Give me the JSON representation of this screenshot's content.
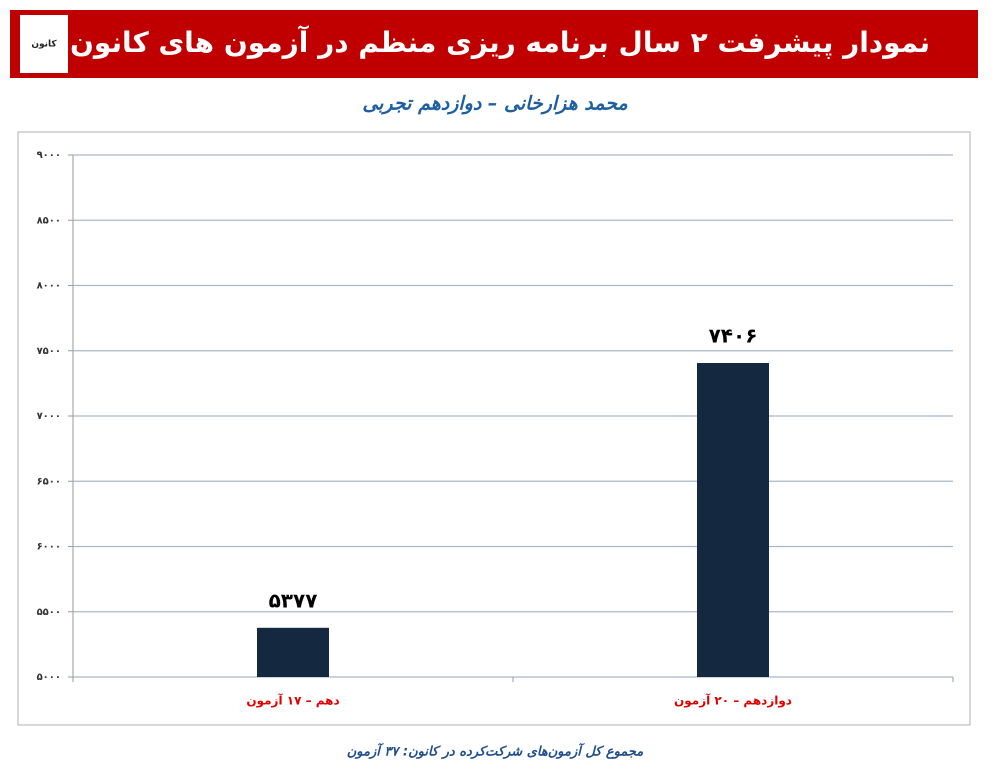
{
  "header": {
    "title": "نمودار پیشرفت ۲ سال برنامه ریزی منظم در آزمون های کانون",
    "logo_text": "کانون"
  },
  "chart_data": {
    "type": "bar",
    "title": "محمد هزارخانی – دوازدهم تجربی",
    "categories": [
      "دهم – ۱۷ آزمون",
      "دوازدهم – ۲۰ آزمون"
    ],
    "values": [
      5377,
      7406
    ],
    "value_labels": [
      "۵۳۷۷",
      "۷۴۰۶"
    ],
    "color": "#14293f",
    "ylim": [
      5000,
      9000
    ],
    "yticks": [
      {
        "value": 5000,
        "label": "۵۰۰۰"
      },
      {
        "value": 5500,
        "label": "۵۵۰۰"
      },
      {
        "value": 6000,
        "label": "۶۰۰۰"
      },
      {
        "value": 6500,
        "label": "۶۵۰۰"
      },
      {
        "value": 7000,
        "label": "۷۰۰۰"
      },
      {
        "value": 7500,
        "label": "۷۵۰۰"
      },
      {
        "value": 8000,
        "label": "۸۰۰۰"
      },
      {
        "value": 8500,
        "label": "۸۵۰۰"
      },
      {
        "value": 9000,
        "label": "۹۰۰۰"
      }
    ],
    "grid": true
  },
  "footer": {
    "text": "مجموع کل آزمون‌های شرکت‌کرده در کانون: ۳۷ آزمون"
  }
}
